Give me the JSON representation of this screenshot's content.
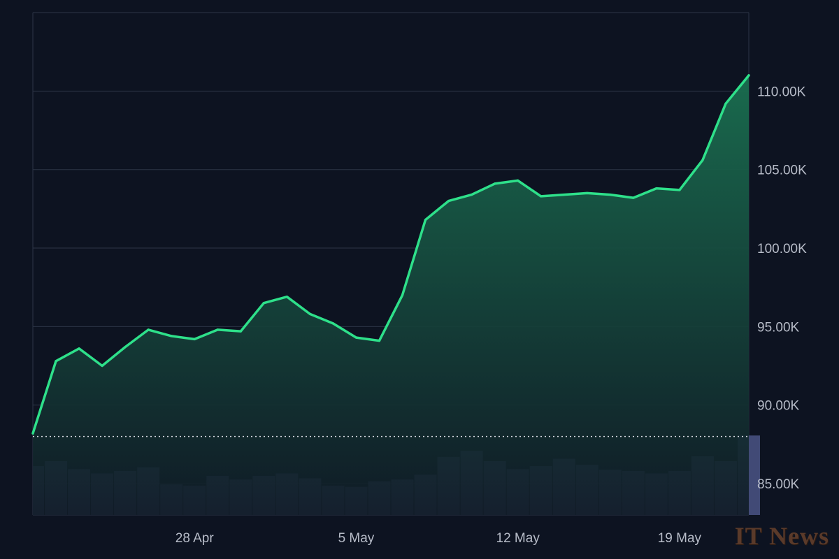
{
  "chart_data": {
    "type": "area",
    "x_tick_labels": [
      "28 Apr",
      "5 May",
      "12 May",
      "19 May"
    ],
    "y_tick_labels": [
      "110.00K",
      "105.00K",
      "100.00K",
      "95.00K",
      "90.00K",
      "85.00K"
    ],
    "y_ticks": [
      110000,
      105000,
      100000,
      95000,
      90000,
      85000
    ],
    "ylim": [
      83000,
      115000
    ],
    "x_range": [
      "2025-04-21",
      "2025-05-22"
    ],
    "reference_value": 88000,
    "grid": true,
    "series": [
      {
        "x": [
          "2025-04-21",
          "2025-04-22",
          "2025-04-23",
          "2025-04-24",
          "2025-04-25",
          "2025-04-26",
          "2025-04-27",
          "2025-04-28",
          "2025-04-29",
          "2025-04-30",
          "2025-05-01",
          "2025-05-02",
          "2025-05-03",
          "2025-05-04",
          "2025-05-05",
          "2025-05-06",
          "2025-05-07",
          "2025-05-08",
          "2025-05-09",
          "2025-05-10",
          "2025-05-11",
          "2025-05-12",
          "2025-05-13",
          "2025-05-14",
          "2025-05-15",
          "2025-05-16",
          "2025-05-17",
          "2025-05-18",
          "2025-05-19",
          "2025-05-20",
          "2025-05-21",
          "2025-05-22"
        ],
        "values": [
          88200,
          92800,
          93600,
          92500,
          93700,
          94800,
          94400,
          94200,
          94800,
          94700,
          96500,
          96900,
          95800,
          95200,
          94300,
          94100,
          97000,
          101800,
          103000,
          103400,
          104100,
          104300,
          103300,
          103400,
          103500,
          103400,
          103200,
          103800,
          103700,
          105600,
          109200,
          111000
        ]
      }
    ],
    "volume_values": [
      80,
      88,
      75,
      68,
      72,
      78,
      50,
      48,
      64,
      58,
      64,
      68,
      60,
      48,
      46,
      55,
      58,
      66,
      95,
      105,
      88,
      75,
      80,
      92,
      82,
      74,
      72,
      68,
      72,
      96,
      88,
      130
    ]
  },
  "colors": {
    "line": "#2ee08a",
    "area_top": "#1a6f50",
    "area_bottom": "#101b26",
    "volume": "#4b5585",
    "grid": "#2d3446",
    "background": "#0d1321"
  },
  "watermark": {
    "text": "IT News"
  }
}
